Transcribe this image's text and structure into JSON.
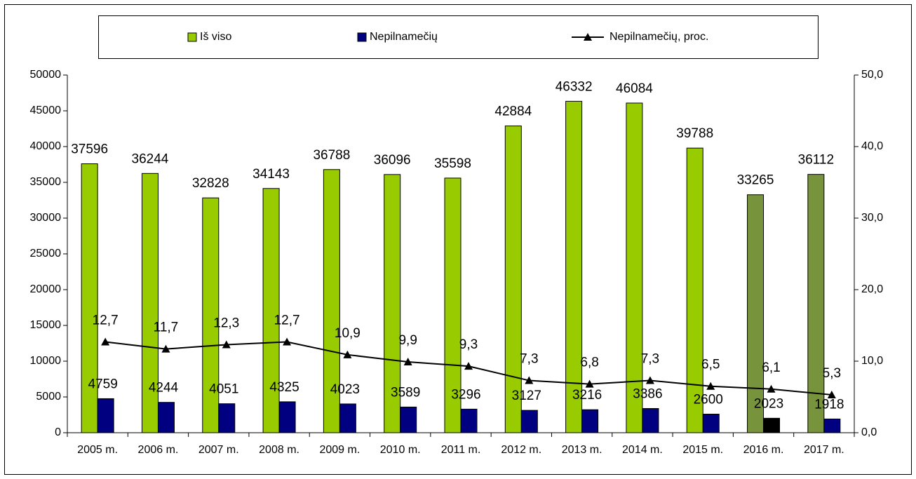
{
  "chart_data": {
    "type": "bar+line",
    "categories": [
      "2005 m.",
      "2006 m.",
      "2007 m.",
      "2008 m.",
      "2009 m.",
      "2010 m.",
      "2011 m.",
      "2012 m.",
      "2013 m.",
      "2014 m.",
      "2015 m.",
      "2016 m.",
      "2017 m."
    ],
    "series": [
      {
        "name": "Iš viso",
        "type": "bar",
        "color": "#99cc00",
        "colors": [
          "#99cc00",
          "#99cc00",
          "#99cc00",
          "#99cc00",
          "#99cc00",
          "#99cc00",
          "#99cc00",
          "#99cc00",
          "#99cc00",
          "#99cc00",
          "#99cc00",
          "#77933c",
          "#77933c"
        ],
        "values": [
          37596,
          36244,
          32828,
          34143,
          36788,
          36096,
          35598,
          42884,
          46332,
          46084,
          39788,
          33265,
          36112
        ]
      },
      {
        "name": "Nepilnamečių",
        "type": "bar",
        "color": "#000080",
        "colors": [
          "#000080",
          "#000080",
          "#000080",
          "#000080",
          "#000080",
          "#000080",
          "#000080",
          "#000080",
          "#000080",
          "#000080",
          "#000080",
          "#000000",
          "#000080"
        ],
        "values": [
          4759,
          4244,
          4051,
          4325,
          4023,
          3589,
          3296,
          3127,
          3216,
          3386,
          2600,
          2023,
          1918
        ]
      },
      {
        "name": "Nepilnamečių, proc.",
        "type": "line",
        "axis": "y2",
        "color": "#000000",
        "values": [
          12.7,
          11.7,
          12.3,
          12.7,
          10.9,
          9.9,
          9.3,
          7.3,
          6.8,
          7.3,
          6.5,
          6.1,
          5.3
        ],
        "value_labels": [
          "12,7",
          "11,7",
          "12,3",
          "12,7",
          "10,9",
          "9,9",
          "9,3",
          "7,3",
          "6,8",
          "7,3",
          "6,5",
          "6,1",
          "5,3"
        ]
      }
    ],
    "ylim": [
      0,
      50000
    ],
    "yticks": [
      0,
      5000,
      10000,
      15000,
      20000,
      25000,
      30000,
      35000,
      40000,
      45000,
      50000
    ],
    "y2lim": [
      0,
      50
    ],
    "y2ticks": [
      {
        "value": 0,
        "label": "0,0"
      },
      {
        "value": 10,
        "label": "10,0"
      },
      {
        "value": 20,
        "label": "20,0"
      },
      {
        "value": 30,
        "label": "30,0"
      },
      {
        "value": 40,
        "label": "40,0"
      },
      {
        "value": 50,
        "label": "50,0"
      }
    ],
    "legend": "top"
  }
}
